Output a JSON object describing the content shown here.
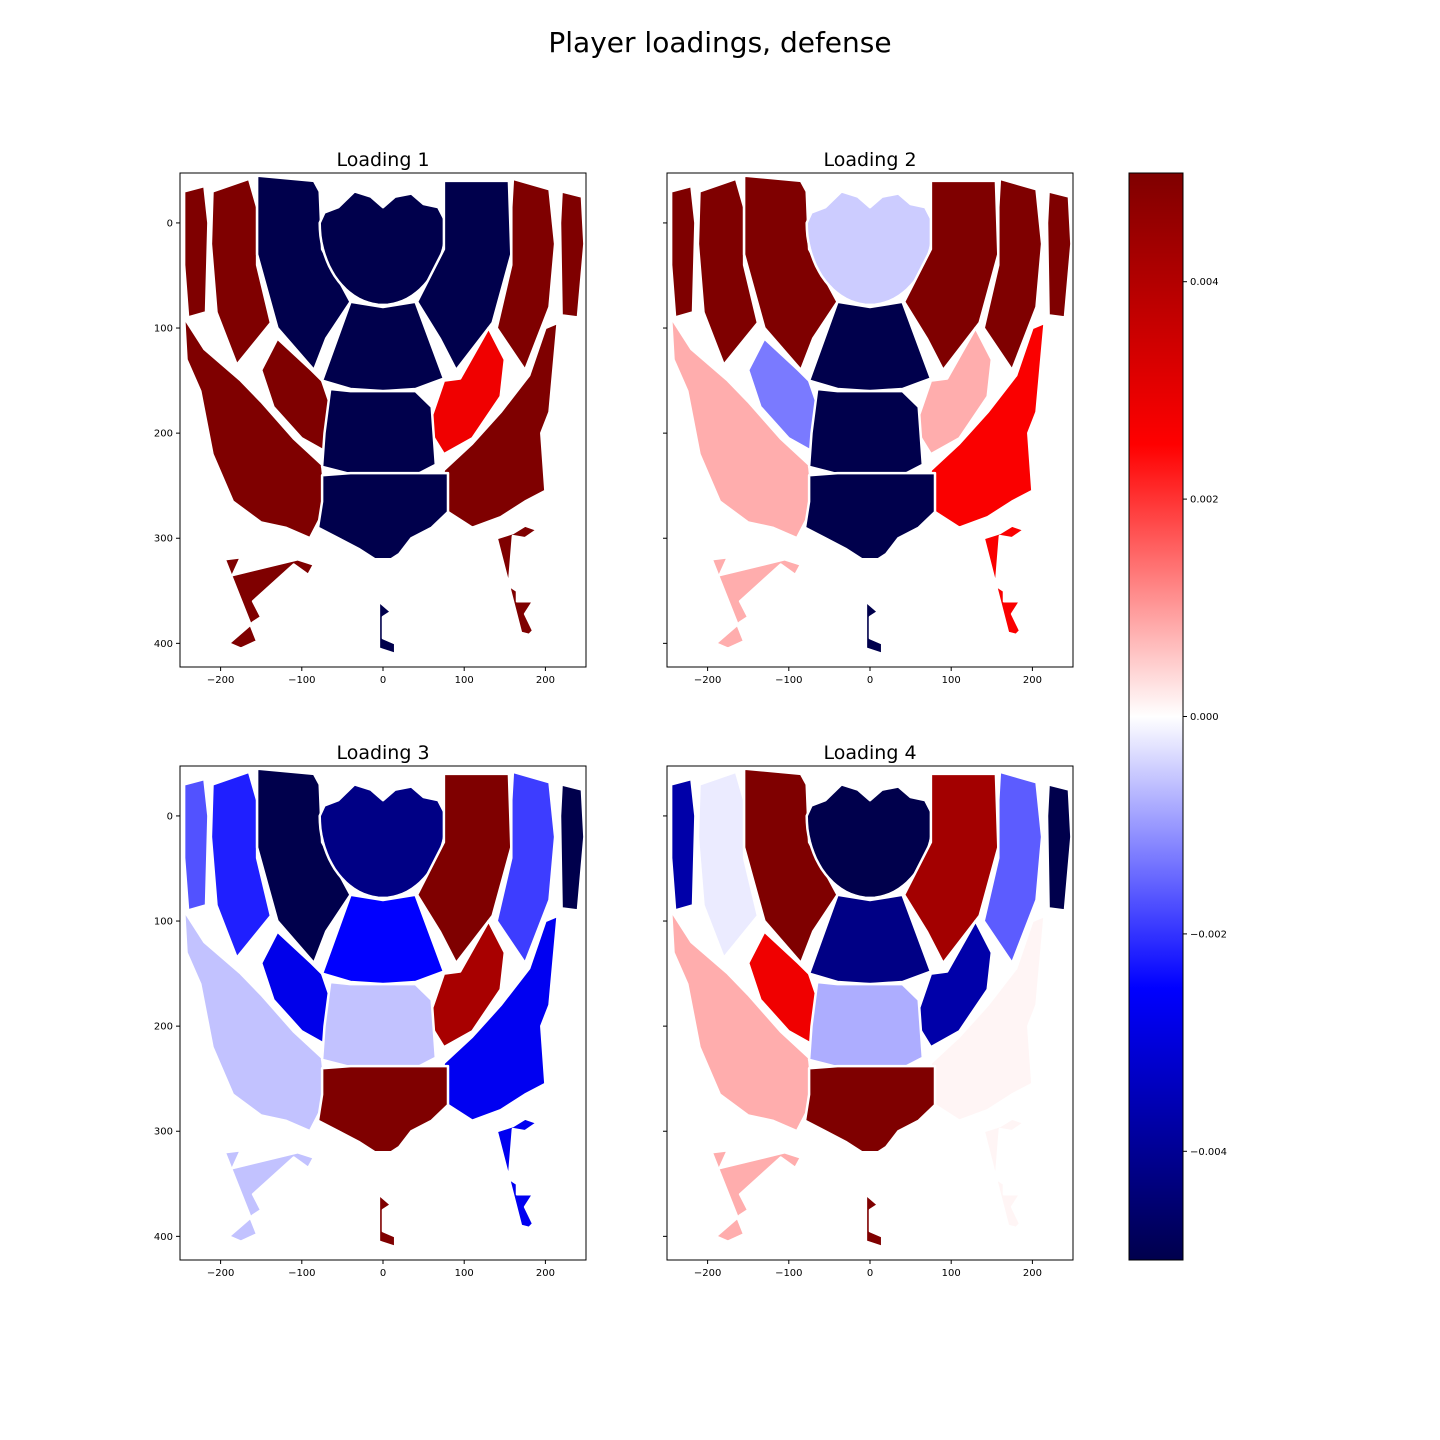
{
  "figure": {
    "title": "Player loadings, defense"
  },
  "colorbar": {
    "vmin": -0.005,
    "vmax": 0.005,
    "ticks": [
      -0.004,
      -0.002,
      0.0,
      0.002,
      0.004
    ],
    "tick_labels": [
      "−0.004",
      "−0.002",
      "0.000",
      "0.002",
      "0.004"
    ],
    "colormap": "seismic",
    "colormap_stops": [
      "#00004c",
      "#0000ff",
      "#ffffff",
      "#ff0000",
      "#7f0000"
    ]
  },
  "chart_data": [
    {
      "type": "heatmap",
      "title": "Loading 1",
      "xlim": [
        -250,
        250
      ],
      "ylim": [
        422.5,
        -47.5
      ],
      "xticks": [
        -200,
        -100,
        0,
        100,
        200
      ],
      "xtick_labels": [
        "−200",
        "−100",
        "0",
        "100",
        "200"
      ],
      "yticks": [
        0,
        100,
        200,
        300,
        400
      ],
      "ytick_labels": [
        "0",
        "100",
        "200",
        "300",
        "400"
      ],
      "show_ytick_labels": true,
      "zones": [
        {
          "zone": "left-corner",
          "value": 0.005
        },
        {
          "zone": "left-wing-three",
          "value": 0.005
        },
        {
          "zone": "left-baseline-mid",
          "value": -0.005
        },
        {
          "zone": "restricted-area",
          "value": -0.005
        },
        {
          "zone": "right-baseline-mid",
          "value": -0.005
        },
        {
          "zone": "right-wing-three",
          "value": 0.005
        },
        {
          "zone": "right-corner",
          "value": 0.005
        },
        {
          "zone": "left-arc-three",
          "value": 0.005
        },
        {
          "zone": "left-elbow-mid",
          "value": 0.005
        },
        {
          "zone": "paint",
          "value": -0.005
        },
        {
          "zone": "right-elbow-mid",
          "value": 0.0028
        },
        {
          "zone": "right-arc-three",
          "value": 0.005
        },
        {
          "zone": "top-key-mid",
          "value": -0.005
        },
        {
          "zone": "top-key-three",
          "value": -0.005
        },
        {
          "zone": "deep-left",
          "value": 0.005
        },
        {
          "zone": "deep-center",
          "value": -0.005
        },
        {
          "zone": "deep-right",
          "value": 0.005
        }
      ]
    },
    {
      "type": "heatmap",
      "title": "Loading 2",
      "xlim": [
        -250,
        250
      ],
      "ylim": [
        422.5,
        -47.5
      ],
      "xticks": [
        -200,
        -100,
        0,
        100,
        200
      ],
      "xtick_labels": [
        "−200",
        "−100",
        "0",
        "100",
        "200"
      ],
      "yticks": [
        0,
        100,
        200,
        300,
        400
      ],
      "ytick_labels": [
        "0",
        "100",
        "200",
        "300",
        "400"
      ],
      "show_ytick_labels": false,
      "zones": [
        {
          "zone": "left-corner",
          "value": 0.005
        },
        {
          "zone": "left-wing-three",
          "value": 0.005
        },
        {
          "zone": "left-baseline-mid",
          "value": 0.005
        },
        {
          "zone": "restricted-area",
          "value": -0.0005
        },
        {
          "zone": "right-baseline-mid",
          "value": 0.005
        },
        {
          "zone": "right-wing-three",
          "value": 0.005
        },
        {
          "zone": "right-corner",
          "value": 0.005
        },
        {
          "zone": "left-arc-three",
          "value": 0.0008
        },
        {
          "zone": "left-elbow-mid",
          "value": -0.0013
        },
        {
          "zone": "paint",
          "value": -0.005
        },
        {
          "zone": "right-elbow-mid",
          "value": 0.0008
        },
        {
          "zone": "right-arc-three",
          "value": 0.0026
        },
        {
          "zone": "top-key-mid",
          "value": -0.005
        },
        {
          "zone": "top-key-three",
          "value": -0.005
        },
        {
          "zone": "deep-left",
          "value": 0.0008
        },
        {
          "zone": "deep-center",
          "value": -0.005
        },
        {
          "zone": "deep-right",
          "value": 0.0026
        }
      ]
    },
    {
      "type": "heatmap",
      "title": "Loading 3",
      "xlim": [
        -250,
        250
      ],
      "ylim": [
        422.5,
        -47.5
      ],
      "xticks": [
        -200,
        -100,
        0,
        100,
        200
      ],
      "xtick_labels": [
        "−200",
        "−100",
        "0",
        "100",
        "200"
      ],
      "yticks": [
        0,
        100,
        200,
        300,
        400
      ],
      "ytick_labels": [
        "0",
        "100",
        "200",
        "300",
        "400"
      ],
      "show_ytick_labels": true,
      "zones": [
        {
          "zone": "left-corner",
          "value": -0.0017
        },
        {
          "zone": "left-wing-three",
          "value": -0.0022
        },
        {
          "zone": "left-baseline-mid",
          "value": -0.005
        },
        {
          "zone": "restricted-area",
          "value": -0.0042
        },
        {
          "zone": "right-baseline-mid",
          "value": 0.005
        },
        {
          "zone": "right-wing-three",
          "value": -0.0019
        },
        {
          "zone": "right-corner",
          "value": -0.005
        },
        {
          "zone": "left-arc-three",
          "value": -0.0006
        },
        {
          "zone": "left-elbow-mid",
          "value": -0.0028
        },
        {
          "zone": "paint",
          "value": -0.0025
        },
        {
          "zone": "right-elbow-mid",
          "value": 0.0042
        },
        {
          "zone": "right-arc-three",
          "value": -0.0027
        },
        {
          "zone": "top-key-mid",
          "value": -0.0006
        },
        {
          "zone": "top-key-three",
          "value": 0.005
        },
        {
          "zone": "deep-left",
          "value": -0.0006
        },
        {
          "zone": "deep-center",
          "value": 0.005
        },
        {
          "zone": "deep-right",
          "value": -0.0027
        }
      ]
    },
    {
      "type": "heatmap",
      "title": "Loading 4",
      "xlim": [
        -250,
        250
      ],
      "ylim": [
        422.5,
        -47.5
      ],
      "xticks": [
        -200,
        -100,
        0,
        100,
        200
      ],
      "xtick_labels": [
        "−200",
        "−100",
        "0",
        "100",
        "200"
      ],
      "yticks": [
        0,
        100,
        200,
        300,
        400
      ],
      "ytick_labels": [
        "0",
        "100",
        "200",
        "300",
        "400"
      ],
      "show_ytick_labels": false,
      "zones": [
        {
          "zone": "left-corner",
          "value": -0.0037
        },
        {
          "zone": "left-wing-three",
          "value": -0.0002
        },
        {
          "zone": "left-baseline-mid",
          "value": 0.005
        },
        {
          "zone": "restricted-area",
          "value": -0.005
        },
        {
          "zone": "right-baseline-mid",
          "value": 0.0043
        },
        {
          "zone": "right-wing-three",
          "value": -0.0016
        },
        {
          "zone": "right-corner",
          "value": -0.005
        },
        {
          "zone": "left-arc-three",
          "value": 0.0008
        },
        {
          "zone": "left-elbow-mid",
          "value": 0.0028
        },
        {
          "zone": "paint",
          "value": -0.0042
        },
        {
          "zone": "right-elbow-mid",
          "value": -0.0037
        },
        {
          "zone": "right-arc-three",
          "value": 0.0001
        },
        {
          "zone": "top-key-mid",
          "value": -0.0008
        },
        {
          "zone": "top-key-three",
          "value": 0.005
        },
        {
          "zone": "deep-left",
          "value": 0.0008
        },
        {
          "zone": "deep-center",
          "value": 0.005
        },
        {
          "zone": "deep-right",
          "value": 0.0001
        }
      ]
    }
  ]
}
